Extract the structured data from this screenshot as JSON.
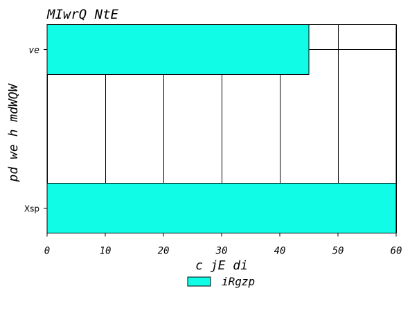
{
  "chart_data": {
    "type": "bar",
    "orientation": "horizontal",
    "title": "MIwrQ NtE",
    "xlabel": "c jE di",
    "ylabel": "pd we  h mdWQW",
    "categories": [
      "ve",
      "Xsp"
    ],
    "category_styles": [
      "italic",
      "normal"
    ],
    "series": [
      {
        "name": "iRgzp",
        "values": [
          45,
          60
        ],
        "color": "#10fce6"
      }
    ],
    "xlim": [
      0,
      60
    ],
    "xticks": [
      "0",
      "10",
      "20",
      "30",
      "40",
      "50",
      "60"
    ],
    "grid": true,
    "legend": {
      "position": "bottom-center"
    }
  }
}
